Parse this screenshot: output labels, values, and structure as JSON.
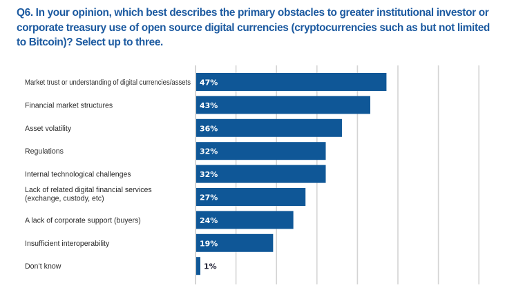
{
  "title": "Q6. In your opinion, which best describes the primary obstacles to greater institutional investor or corporate treasury use of open source digital currencies (cryptocurrencies such as but not limited to Bitcoin)? Select up to three.",
  "colors": {
    "title": "#1c5aa0",
    "bar": "#0f5797",
    "gridline": "#d4d4d4",
    "label_inside": "#ffffff",
    "label_outside": "#1a1a2e",
    "category_text": "#2a2a2a"
  },
  "chart_data": {
    "type": "bar",
    "orientation": "horizontal",
    "title": "Q6. In your opinion, which best describes the primary obstacles to greater institutional investor or corporate treasury use of open source digital currencies (cryptocurrencies such as but not limited to Bitcoin)? Select up to three.",
    "xlabel": "",
    "ylabel": "",
    "categories": [
      [
        "Market trust or understanding of digital currencies/assets"
      ],
      [
        "Financial market structures"
      ],
      [
        "Asset volatility"
      ],
      [
        "Regulations"
      ],
      [
        "Internal technological challenges"
      ],
      [
        "Lack of related digital financial services",
        "(exchange, custody, etc)"
      ],
      [
        "A lack of corporate support (buyers)"
      ],
      [
        "Insufficient interoperability"
      ],
      [
        "Don’t know"
      ]
    ],
    "values": [
      47,
      43,
      36,
      32,
      32,
      27,
      24,
      19,
      1
    ],
    "value_labels": [
      "47%",
      "43%",
      "36%",
      "32%",
      "32%",
      "27%",
      "24%",
      "19%",
      "1%"
    ],
    "unit": "%",
    "xlim": [
      0,
      70
    ],
    "grid_step": 10,
    "grid": true,
    "legend": "none"
  }
}
